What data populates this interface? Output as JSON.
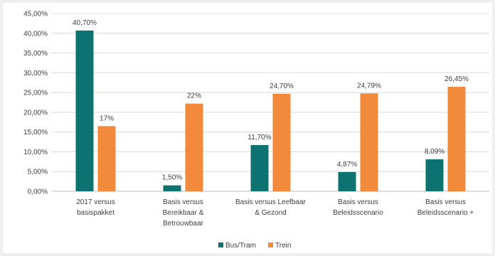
{
  "chart_data": {
    "type": "bar",
    "title": "",
    "xlabel": "",
    "ylabel": "",
    "ylim": [
      0,
      45
    ],
    "yticks": [
      "0,00%",
      "5,00%",
      "10,00%",
      "15,00%",
      "20,00%",
      "25,00%",
      "30,00%",
      "35,00%",
      "40,00%",
      "45,00%"
    ],
    "categories": [
      [
        "2017 versus",
        "basispakket"
      ],
      [
        "Basis versus",
        "Bereikbaar &",
        "Betrouwbaar"
      ],
      [
        "Basis versus Leefbaar",
        "& Gezond"
      ],
      [
        "Basis versus",
        "Beleidsscenario"
      ],
      [
        "Basis versus",
        "Beleidsscenario +"
      ]
    ],
    "series": [
      {
        "name": "Bus/Tram",
        "color": "#0e7370",
        "values": [
          40.7,
          1.5,
          11.7,
          4.87,
          8.09
        ],
        "labels": [
          "40,70%",
          "1,50%",
          "11,70%",
          "4,87%",
          "8,09%"
        ]
      },
      {
        "name": "Trein",
        "color": "#f28a3c",
        "values": [
          16.5,
          22.2,
          24.7,
          24.79,
          26.45
        ],
        "labels": [
          "17%",
          "22%",
          "24,70%",
          "24,79%",
          "26,45%"
        ]
      }
    ],
    "grid": true,
    "legend_position": "bottom"
  }
}
